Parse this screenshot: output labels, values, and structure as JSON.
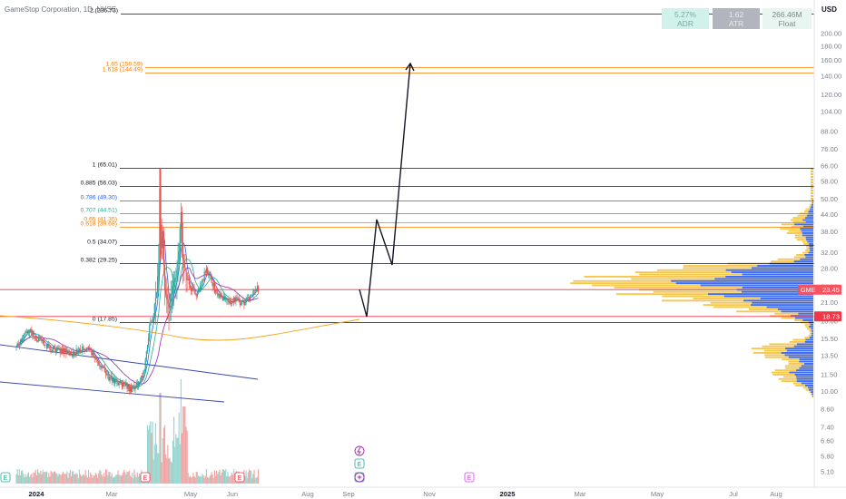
{
  "header": {
    "ticker_line": "GameStop Corporation, 1D, NYSE",
    "currency": "USD"
  },
  "stats": [
    {
      "value": "5.27%",
      "label": "ADR",
      "bg": "#d1f2eb",
      "fg": "#7aa9a0"
    },
    {
      "value": "1.62",
      "label": "ATR",
      "bg": "#b2b5be",
      "fg": "#e9ebef"
    },
    {
      "value": "266.46M",
      "label": "Float",
      "bg": "#e8f5f1",
      "fg": "#7a8a86"
    }
  ],
  "chart_data": {
    "type": "candlestick",
    "symbol": "GME",
    "timeframe": "1D",
    "exchange": "NYSE",
    "scale": "log",
    "price_axis": {
      "ticks": [
        200.0,
        180.0,
        160.0,
        140.0,
        120.0,
        104.0,
        88.0,
        76.0,
        66.0,
        58.0,
        50.0,
        44.0,
        38.0,
        32.0,
        28.0,
        24.0,
        21.0,
        18.0,
        15.5,
        13.5,
        11.5,
        10.0,
        8.6,
        7.4,
        6.6,
        5.8,
        5.1
      ],
      "tick_labels": [
        "200.00",
        "180.00",
        "160.00",
        "140.00",
        "120.00",
        "104.00",
        "88.00",
        "76.00",
        "66.00",
        "58.00",
        "50.00",
        "44.00",
        "38.00",
        "32.00",
        "28.00",
        "24.00",
        "21.00",
        "18.00",
        "15.50",
        "13.50",
        "11.50",
        "10.00",
        "8.60",
        "7.40",
        "6.60",
        "5.80",
        "5.10"
      ],
      "range": [
        5.0,
        240.0
      ]
    },
    "time_axis": {
      "labels": [
        "2024",
        "Mar",
        "May",
        "Jun",
        "Aug",
        "Sep",
        "Nov",
        "2025",
        "Mar",
        "May",
        "Jul",
        "Aug"
      ],
      "bold": [
        "2024",
        "2025"
      ]
    },
    "fib_levels": [
      {
        "label": "2 (236.73)",
        "price": 236.73,
        "color": "#131722"
      },
      {
        "label": "1.65 (150.59)",
        "price": 150.59,
        "color": "#f57c00"
      },
      {
        "label": "1.618 (144.49)",
        "price": 144.49,
        "color": "#f57c00"
      },
      {
        "label": "1 (65.01)",
        "price": 65.01,
        "color": "#131722"
      },
      {
        "label": "0.885 (56.03)",
        "price": 56.03,
        "color": "#131722"
      },
      {
        "label": "0.786 (49.30)",
        "price": 49.3,
        "color": "#2962ff"
      },
      {
        "label": "0.707 (44.51)",
        "price": 44.51,
        "color": "#22ab94"
      },
      {
        "label": "0.65 (41.35)",
        "price": 41.35,
        "color": "#f57c00"
      },
      {
        "label": "0.618 (39.68)",
        "price": 39.68,
        "color": "#f57c00"
      },
      {
        "label": "0.5 (34.07)",
        "price": 34.07,
        "color": "#131722"
      },
      {
        "label": "0.382 (29.25)",
        "price": 29.25,
        "color": "#131722"
      },
      {
        "label": "0 (17.85)",
        "price": 17.85,
        "color": "#131722"
      }
    ],
    "price_tags": [
      {
        "symbol": "GME",
        "value": "23.45",
        "price": 23.45,
        "color": "#f7525f"
      },
      {
        "symbol": "",
        "value": "18.73",
        "price": 18.73,
        "color": "#f23645"
      }
    ],
    "events": [
      {
        "glyph": "E",
        "color": "#22ab94"
      },
      {
        "glyph": "E",
        "color": "#f23645"
      },
      {
        "glyph": "E",
        "color": "#f23645"
      },
      {
        "glyph": "E",
        "color": "#22ab94"
      },
      {
        "glyph": "E",
        "color": "#e040fb"
      }
    ]
  }
}
